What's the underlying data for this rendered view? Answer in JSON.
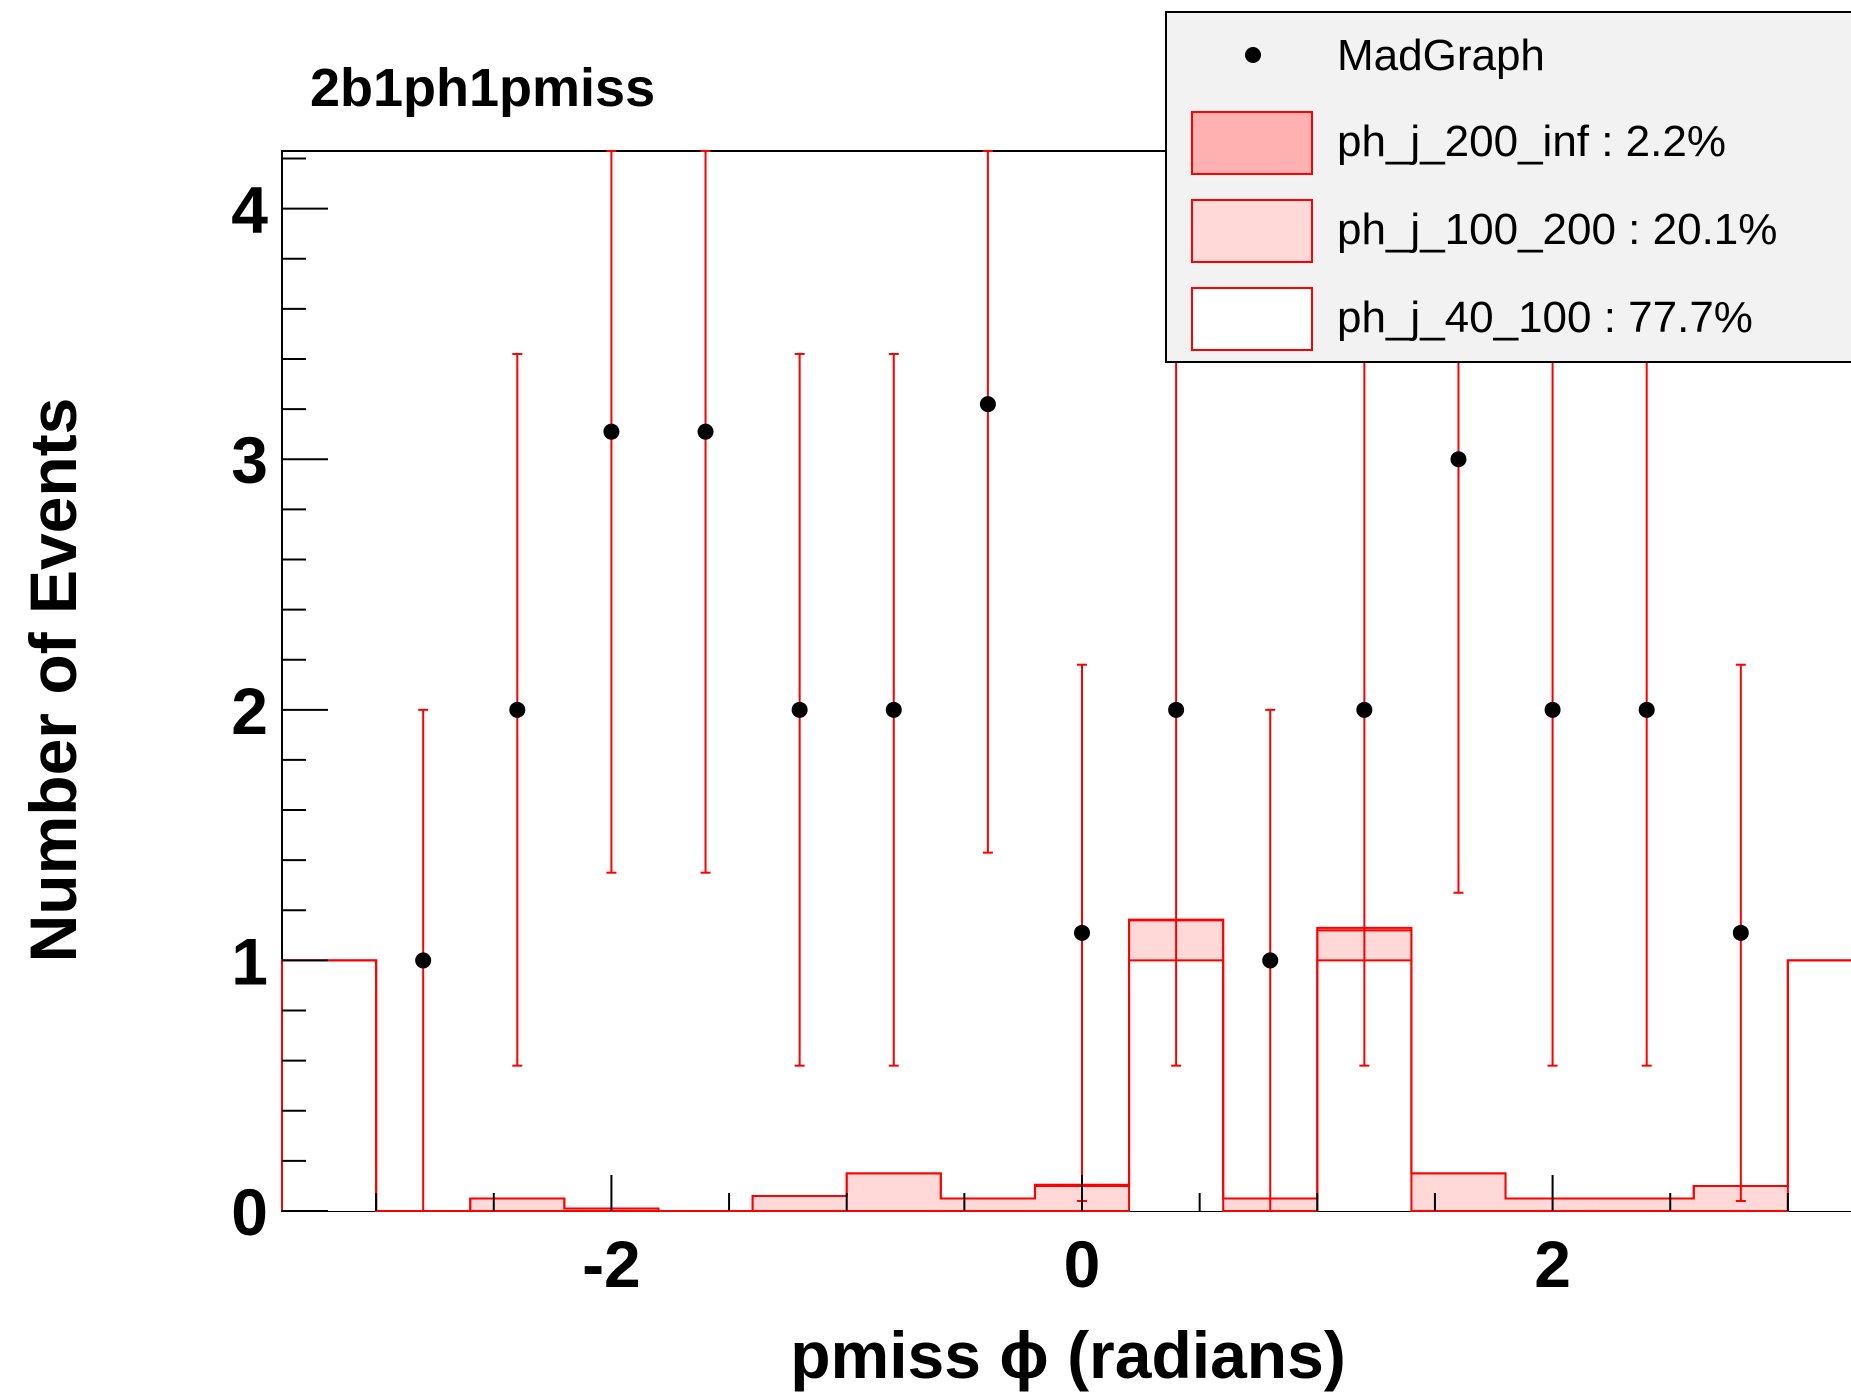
{
  "chart_data": {
    "type": "histogram",
    "title": "2b1ph1pmiss",
    "xlabel": "pmiss ϕ (radians)",
    "ylabel": "Number of Events",
    "xlim": [
      -3.4,
      3.4
    ],
    "ylim": [
      0,
      4.23
    ],
    "x_ticks": [
      -2,
      0,
      2
    ],
    "x_tick_labels": [
      "-2",
      "0",
      "2"
    ],
    "y_ticks": [
      0,
      1,
      2,
      3,
      4
    ],
    "y_tick_labels": [
      "0",
      "1",
      "2",
      "3",
      "4"
    ],
    "legend_position": "top-right",
    "bin_edges": [
      -3.4,
      -3.0,
      -2.6,
      -2.2,
      -1.8,
      -1.4,
      -1.0,
      -0.6,
      -0.2,
      0.2,
      0.6,
      1.0,
      1.4,
      1.8,
      2.2,
      2.6,
      3.0,
      3.4
    ],
    "series": [
      {
        "name": "MadGraph",
        "kind": "points",
        "color": "#000000",
        "error_color": "#ff0000",
        "x": [
          -2.8,
          -2.4,
          -2.0,
          -1.6,
          -1.2,
          -0.8,
          -0.4,
          0.0,
          0.4,
          0.8,
          1.2,
          1.6,
          2.0,
          2.4,
          2.8
        ],
        "values": [
          1,
          2,
          3.11,
          3.11,
          2,
          2,
          3.22,
          1.11,
          2,
          1,
          2,
          3,
          2,
          2,
          1.11
        ],
        "err_low": [
          1,
          1.42,
          1.76,
          1.76,
          1.42,
          1.42,
          1.79,
          1.07,
          1.42,
          1,
          1.42,
          1.73,
          1.42,
          1.42,
          1.07
        ],
        "err_high": [
          1,
          1.42,
          1.76,
          1.76,
          1.42,
          1.42,
          1.79,
          1.07,
          1.42,
          1,
          1.42,
          1.73,
          1.42,
          1.42,
          1.07
        ]
      },
      {
        "name": "ph_j_200_inf : 2.2%",
        "kind": "stack",
        "fill": "#ffb0b0",
        "line": "#ff0000",
        "values": [
          0,
          0,
          0,
          0,
          0,
          0,
          0,
          0,
          0.005,
          0.003,
          0,
          0.01,
          0,
          0,
          0,
          0,
          0
        ]
      },
      {
        "name": "ph_j_100_200 : 20.1%",
        "kind": "stack",
        "fill": "#ffd8d8",
        "line": "#ff0000",
        "values": [
          0,
          0,
          0.05,
          0.01,
          0,
          0.06,
          0.15,
          0.05,
          0.1,
          0.16,
          0.05,
          0.12,
          0.15,
          0.05,
          0.05,
          0.1,
          0
        ]
      },
      {
        "name": "ph_j_40_100 : 77.7%",
        "kind": "stack",
        "fill": "#ffffff",
        "line": "#ff0000",
        "values": [
          1,
          0,
          0,
          0,
          0,
          0,
          0,
          0,
          0,
          1,
          0,
          1,
          0,
          0,
          0,
          0,
          1
        ]
      }
    ]
  }
}
